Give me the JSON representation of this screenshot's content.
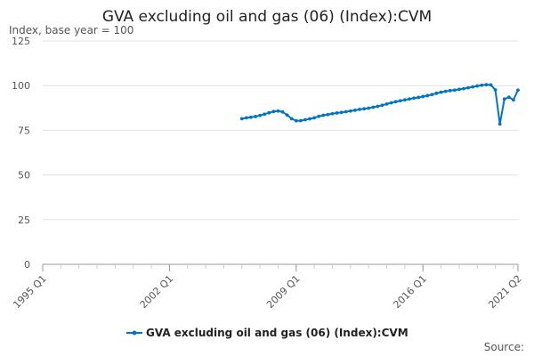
{
  "chart_data": {
    "type": "line",
    "title": "GVA excluding oil and gas (06) (Index):CVM",
    "subtitle": "Index, base year = 100",
    "source_label": "Source:",
    "ylim": [
      0,
      125
    ],
    "yticks": [
      0,
      25,
      50,
      75,
      100,
      125
    ],
    "x_range": [
      "1995 Q1",
      "2021 Q2"
    ],
    "xticks": [
      "1995 Q1",
      "2002 Q1",
      "2009 Q1",
      "2016 Q1",
      "2021 Q2"
    ],
    "grid": true,
    "legend_position": "bottom",
    "color": "#0075c2",
    "series": [
      {
        "name": "GVA excluding oil and gas (06) (Index):CVM",
        "x": [
          "2006 Q1",
          "2006 Q2",
          "2006 Q3",
          "2006 Q4",
          "2007 Q1",
          "2007 Q2",
          "2007 Q3",
          "2007 Q4",
          "2008 Q1",
          "2008 Q2",
          "2008 Q3",
          "2008 Q4",
          "2009 Q1",
          "2009 Q2",
          "2009 Q3",
          "2009 Q4",
          "2010 Q1",
          "2010 Q2",
          "2010 Q3",
          "2010 Q4",
          "2011 Q1",
          "2011 Q2",
          "2011 Q3",
          "2011 Q4",
          "2012 Q1",
          "2012 Q2",
          "2012 Q3",
          "2012 Q4",
          "2013 Q1",
          "2013 Q2",
          "2013 Q3",
          "2013 Q4",
          "2014 Q1",
          "2014 Q2",
          "2014 Q3",
          "2014 Q4",
          "2015 Q1",
          "2015 Q2",
          "2015 Q3",
          "2015 Q4",
          "2016 Q1",
          "2016 Q2",
          "2016 Q3",
          "2016 Q4",
          "2017 Q1",
          "2017 Q2",
          "2017 Q3",
          "2017 Q4",
          "2018 Q1",
          "2018 Q2",
          "2018 Q3",
          "2018 Q4",
          "2019 Q1",
          "2019 Q2",
          "2019 Q3",
          "2019 Q4",
          "2020 Q1",
          "2020 Q2",
          "2020 Q3",
          "2020 Q4",
          "2021 Q1",
          "2021 Q2"
        ],
        "values": [
          81.5,
          82.0,
          82.3,
          82.7,
          83.3,
          84.0,
          84.8,
          85.5,
          85.8,
          85.3,
          83.5,
          81.5,
          80.3,
          80.4,
          80.9,
          81.4,
          82.0,
          82.8,
          83.4,
          83.8,
          84.3,
          84.7,
          85.0,
          85.4,
          85.8,
          86.2,
          86.7,
          87.0,
          87.4,
          87.9,
          88.4,
          89.0,
          89.7,
          90.4,
          91.0,
          91.5,
          92.0,
          92.5,
          93.0,
          93.4,
          93.9,
          94.4,
          95.0,
          95.7,
          96.3,
          96.8,
          97.2,
          97.5,
          97.9,
          98.3,
          98.8,
          99.3,
          99.8,
          100.2,
          100.5,
          100.4,
          97.6,
          78.5,
          92.5,
          93.5,
          92.0,
          97.5
        ]
      }
    ]
  }
}
